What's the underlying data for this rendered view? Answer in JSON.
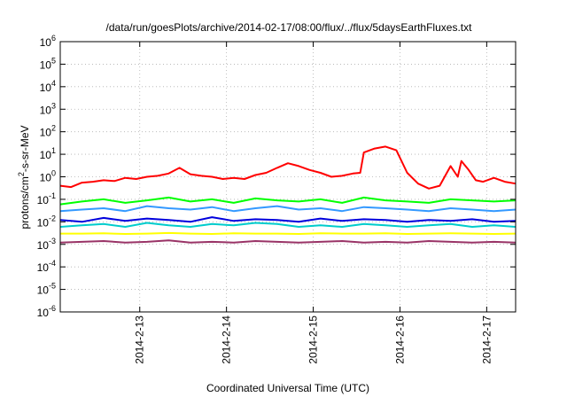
{
  "chart_data": {
    "type": "line",
    "title": "/data/run/goesPlots/archive/2014-02-17/08:00/flux/../flux/5daysEarthFluxes.txt",
    "xlabel": "Coordinated Universal Time (UTC)",
    "ylabel": {
      "base": "protons/cm",
      "sup": "2",
      "rest": "-s-sr-MeV"
    },
    "yscale": "log",
    "ylim": [
      1e-06,
      1000000
    ],
    "xlim": [
      "2014-02-12T02:00",
      "2014-02-17T08:00"
    ],
    "grid": true,
    "legend": "none",
    "y_ticks": [
      {
        "value": 1e-06,
        "base": "10",
        "exp": "-6"
      },
      {
        "value": 1e-05,
        "base": "10",
        "exp": "-5"
      },
      {
        "value": 0.0001,
        "base": "10",
        "exp": "-4"
      },
      {
        "value": 0.001,
        "base": "10",
        "exp": "-3"
      },
      {
        "value": 0.01,
        "base": "10",
        "exp": "-2"
      },
      {
        "value": 0.1,
        "base": "10",
        "exp": "-1"
      },
      {
        "value": 1,
        "base": "10",
        "exp": "0"
      },
      {
        "value": 10,
        "base": "10",
        "exp": "1"
      },
      {
        "value": 100,
        "base": "10",
        "exp": "2"
      },
      {
        "value": 1000,
        "base": "10",
        "exp": "3"
      },
      {
        "value": 10000,
        "base": "10",
        "exp": "4"
      },
      {
        "value": 100000,
        "base": "10",
        "exp": "5"
      },
      {
        "value": 1000000,
        "base": "10",
        "exp": "6"
      }
    ],
    "x_ticks": [
      {
        "value": "2014-02-13T00:00",
        "label": "2014-2-13"
      },
      {
        "value": "2014-02-14T00:00",
        "label": "2014-2-14"
      },
      {
        "value": "2014-02-15T00:00",
        "label": "2014-2-15"
      },
      {
        "value": "2014-02-16T00:00",
        "label": "2014-2-16"
      },
      {
        "value": "2014-02-17T00:00",
        "label": "2014-2-17"
      }
    ],
    "series": [
      {
        "color": "#ff0000",
        "x": [
          "2014-02-12T02:00",
          "2014-02-12T05:00",
          "2014-02-12T08:00",
          "2014-02-12T11:00",
          "2014-02-12T14:00",
          "2014-02-12T17:00",
          "2014-02-12T20:00",
          "2014-02-12T23:00",
          "2014-02-13T02:00",
          "2014-02-13T05:00",
          "2014-02-13T08:00",
          "2014-02-13T11:00",
          "2014-02-13T14:00",
          "2014-02-13T17:00",
          "2014-02-13T20:00",
          "2014-02-13T23:00",
          "2014-02-14T02:00",
          "2014-02-14T05:00",
          "2014-02-14T08:00",
          "2014-02-14T11:00",
          "2014-02-14T14:00",
          "2014-02-14T17:00",
          "2014-02-14T20:00",
          "2014-02-14T23:00",
          "2014-02-15T02:00",
          "2014-02-15T05:00",
          "2014-02-15T08:00",
          "2014-02-15T11:00",
          "2014-02-15T13:00",
          "2014-02-15T14:00",
          "2014-02-15T17:00",
          "2014-02-15T20:00",
          "2014-02-15T23:00",
          "2014-02-16T02:00",
          "2014-02-16T05:00",
          "2014-02-16T08:00",
          "2014-02-16T11:00",
          "2014-02-16T14:00",
          "2014-02-16T16:00",
          "2014-02-16T17:00",
          "2014-02-16T19:00",
          "2014-02-16T21:00",
          "2014-02-16T23:00",
          "2014-02-17T02:00",
          "2014-02-17T05:00",
          "2014-02-17T08:00"
        ],
        "values": [
          0.4,
          0.35,
          0.55,
          0.6,
          0.7,
          0.65,
          0.9,
          0.8,
          1.0,
          1.1,
          1.4,
          2.5,
          1.3,
          1.1,
          1.0,
          0.8,
          0.9,
          0.8,
          1.2,
          1.5,
          2.5,
          4.0,
          3.0,
          2.0,
          1.5,
          1.0,
          1.1,
          1.4,
          1.5,
          12,
          18,
          22,
          15,
          1.5,
          0.5,
          0.3,
          0.4,
          3.0,
          1.0,
          5.0,
          2.0,
          0.7,
          0.6,
          0.9,
          0.6,
          0.5
        ]
      },
      {
        "color": "#00ff00",
        "x": [
          "2014-02-12T02:00",
          "2014-02-12T08:00",
          "2014-02-12T14:00",
          "2014-02-12T20:00",
          "2014-02-13T02:00",
          "2014-02-13T08:00",
          "2014-02-13T14:00",
          "2014-02-13T20:00",
          "2014-02-14T02:00",
          "2014-02-14T08:00",
          "2014-02-14T14:00",
          "2014-02-14T20:00",
          "2014-02-15T02:00",
          "2014-02-15T08:00",
          "2014-02-15T14:00",
          "2014-02-15T20:00",
          "2014-02-16T02:00",
          "2014-02-16T08:00",
          "2014-02-16T14:00",
          "2014-02-16T20:00",
          "2014-02-17T02:00",
          "2014-02-17T08:00"
        ],
        "values": [
          0.06,
          0.08,
          0.1,
          0.07,
          0.09,
          0.12,
          0.08,
          0.1,
          0.07,
          0.11,
          0.09,
          0.08,
          0.1,
          0.07,
          0.12,
          0.09,
          0.08,
          0.07,
          0.1,
          0.09,
          0.08,
          0.09
        ]
      },
      {
        "color": "#3399ff",
        "x": [
          "2014-02-12T02:00",
          "2014-02-12T08:00",
          "2014-02-12T14:00",
          "2014-02-12T20:00",
          "2014-02-13T02:00",
          "2014-02-13T08:00",
          "2014-02-13T14:00",
          "2014-02-13T20:00",
          "2014-02-14T02:00",
          "2014-02-14T08:00",
          "2014-02-14T14:00",
          "2014-02-14T20:00",
          "2014-02-15T02:00",
          "2014-02-15T08:00",
          "2014-02-15T14:00",
          "2014-02-15T20:00",
          "2014-02-16T02:00",
          "2014-02-16T08:00",
          "2014-02-16T14:00",
          "2014-02-16T20:00",
          "2014-02-17T02:00",
          "2014-02-17T08:00"
        ],
        "values": [
          0.03,
          0.035,
          0.04,
          0.03,
          0.05,
          0.04,
          0.035,
          0.045,
          0.03,
          0.04,
          0.05,
          0.035,
          0.04,
          0.03,
          0.045,
          0.04,
          0.035,
          0.03,
          0.04,
          0.035,
          0.03,
          0.035
        ]
      },
      {
        "color": "#00cccc",
        "x": [
          "2014-02-12T02:00",
          "2014-02-12T08:00",
          "2014-02-12T14:00",
          "2014-02-12T20:00",
          "2014-02-13T02:00",
          "2014-02-13T08:00",
          "2014-02-13T14:00",
          "2014-02-13T20:00",
          "2014-02-14T02:00",
          "2014-02-14T08:00",
          "2014-02-14T14:00",
          "2014-02-14T20:00",
          "2014-02-15T02:00",
          "2014-02-15T08:00",
          "2014-02-15T14:00",
          "2014-02-15T20:00",
          "2014-02-16T02:00",
          "2014-02-16T08:00",
          "2014-02-16T14:00",
          "2014-02-16T20:00",
          "2014-02-17T02:00",
          "2014-02-17T08:00"
        ],
        "values": [
          0.006,
          0.007,
          0.008,
          0.006,
          0.009,
          0.007,
          0.006,
          0.008,
          0.007,
          0.009,
          0.008,
          0.006,
          0.007,
          0.006,
          0.008,
          0.007,
          0.006,
          0.007,
          0.008,
          0.006,
          0.007,
          0.006
        ]
      },
      {
        "color": "#0000dd",
        "x": [
          "2014-02-12T02:00",
          "2014-02-12T08:00",
          "2014-02-12T14:00",
          "2014-02-12T20:00",
          "2014-02-13T02:00",
          "2014-02-13T08:00",
          "2014-02-13T14:00",
          "2014-02-13T20:00",
          "2014-02-14T02:00",
          "2014-02-14T08:00",
          "2014-02-14T14:00",
          "2014-02-14T20:00",
          "2014-02-15T02:00",
          "2014-02-15T08:00",
          "2014-02-15T14:00",
          "2014-02-15T20:00",
          "2014-02-16T02:00",
          "2014-02-16T08:00",
          "2014-02-16T14:00",
          "2014-02-16T20:00",
          "2014-02-17T02:00",
          "2014-02-17T08:00"
        ],
        "values": [
          0.012,
          0.01,
          0.015,
          0.011,
          0.014,
          0.012,
          0.01,
          0.016,
          0.011,
          0.013,
          0.012,
          0.01,
          0.014,
          0.011,
          0.013,
          0.012,
          0.01,
          0.012,
          0.011,
          0.013,
          0.01,
          0.011
        ]
      },
      {
        "color": "#ffff00",
        "x": [
          "2014-02-12T02:00",
          "2014-02-12T08:00",
          "2014-02-12T14:00",
          "2014-02-12T20:00",
          "2014-02-13T02:00",
          "2014-02-13T08:00",
          "2014-02-13T14:00",
          "2014-02-13T20:00",
          "2014-02-14T02:00",
          "2014-02-14T08:00",
          "2014-02-14T14:00",
          "2014-02-14T20:00",
          "2014-02-15T02:00",
          "2014-02-15T08:00",
          "2014-02-15T14:00",
          "2014-02-15T20:00",
          "2014-02-16T02:00",
          "2014-02-16T08:00",
          "2014-02-16T14:00",
          "2014-02-16T20:00",
          "2014-02-17T02:00",
          "2014-02-17T08:00"
        ],
        "values": [
          0.003,
          0.003,
          0.0031,
          0.0029,
          0.003,
          0.0032,
          0.003,
          0.0029,
          0.0031,
          0.003,
          0.003,
          0.0029,
          0.0031,
          0.003,
          0.003,
          0.0031,
          0.0029,
          0.003,
          0.0031,
          0.003,
          0.0029,
          0.003
        ]
      },
      {
        "color": "#993366",
        "x": [
          "2014-02-12T02:00",
          "2014-02-12T08:00",
          "2014-02-12T14:00",
          "2014-02-12T20:00",
          "2014-02-13T02:00",
          "2014-02-13T08:00",
          "2014-02-13T14:00",
          "2014-02-13T20:00",
          "2014-02-14T02:00",
          "2014-02-14T08:00",
          "2014-02-14T14:00",
          "2014-02-14T20:00",
          "2014-02-15T02:00",
          "2014-02-15T08:00",
          "2014-02-15T14:00",
          "2014-02-15T20:00",
          "2014-02-16T02:00",
          "2014-02-16T08:00",
          "2014-02-16T14:00",
          "2014-02-16T20:00",
          "2014-02-17T02:00",
          "2014-02-17T08:00"
        ],
        "values": [
          0.0012,
          0.0013,
          0.0014,
          0.0012,
          0.0013,
          0.0015,
          0.0012,
          0.0013,
          0.0012,
          0.0014,
          0.0013,
          0.0012,
          0.0013,
          0.0014,
          0.0012,
          0.0013,
          0.0012,
          0.0014,
          0.0013,
          0.0012,
          0.0013,
          0.0012
        ]
      }
    ]
  }
}
